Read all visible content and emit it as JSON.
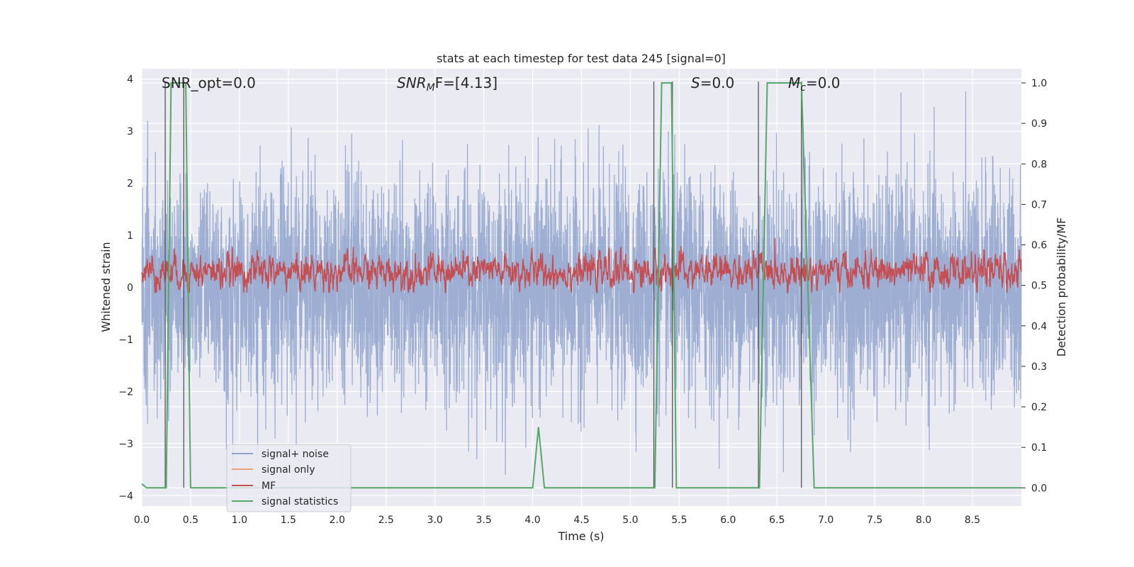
{
  "chart_data": {
    "type": "line",
    "title": "stats at each timestep for test data 245 [signal=0]",
    "xlabel": "Time (s)",
    "ylabel_left": "Whitened strain",
    "ylabel_right": "Detection probability/MF",
    "xlim": [
      0,
      9.0
    ],
    "ylim_left": [
      -4.2,
      4.2
    ],
    "ylim_right": [
      -0.045,
      1.035
    ],
    "x_ticks": [
      "0.0",
      "0.5",
      "1.0",
      "1.5",
      "2.0",
      "2.5",
      "3.0",
      "3.5",
      "4.0",
      "4.5",
      "5.0",
      "5.5",
      "6.0",
      "6.5",
      "7.0",
      "7.5",
      "8.0",
      "8.5"
    ],
    "y_ticks_left": [
      "−4",
      "−3",
      "−2",
      "−1",
      "0",
      "1",
      "2",
      "3",
      "4"
    ],
    "y_ticks_right": [
      "0.0",
      "0.1",
      "0.2",
      "0.3",
      "0.4",
      "0.5",
      "0.6",
      "0.7",
      "0.8",
      "0.9",
      "1.0"
    ],
    "grid": true,
    "legend_position": "lower-left",
    "annotations": {
      "snr_opt": "SNR_opt=0.0",
      "snr_mf_base": "SNR",
      "snr_mf_sub": "M",
      "snr_mf_rest": "F=[4.13]",
      "s_base": "S",
      "s_rest": "=0.0",
      "mc_base": "M",
      "mc_sub": "c",
      "mc_rest": "=0.0"
    },
    "series": [
      {
        "name": "signal+ noise",
        "color": "#8fa3cc",
        "axis": "left",
        "noise_amplitude_sigma": 1.0,
        "peak_range": [
          -3.6,
          4.0
        ]
      },
      {
        "name": "signal only",
        "color": "#e8a283",
        "axis": "left",
        "values": []
      },
      {
        "name": "MF",
        "color": "#c44e52",
        "axis": "left",
        "mean": 0.3,
        "range": [
          -0.1,
          0.95
        ]
      },
      {
        "name": "signal statistics",
        "color": "#55a868",
        "axis": "right",
        "x": [
          0.0,
          0.05,
          0.25,
          0.3,
          0.4,
          0.45,
          0.5,
          4.0,
          4.06,
          4.12,
          5.25,
          5.32,
          5.42,
          5.47,
          5.55,
          6.32,
          6.4,
          6.75,
          6.88,
          9.0
        ],
        "y": [
          0.01,
          0.0,
          0.0,
          1.0,
          1.0,
          1.0,
          0.0,
          0.0,
          0.15,
          0.0,
          0.0,
          1.0,
          1.0,
          0.0,
          0.0,
          0.0,
          1.0,
          1.0,
          0.0,
          0.0
        ]
      }
    ],
    "vertical_markers": [
      0.24,
      0.43,
      5.24,
      5.43,
      6.31,
      6.75
    ]
  }
}
